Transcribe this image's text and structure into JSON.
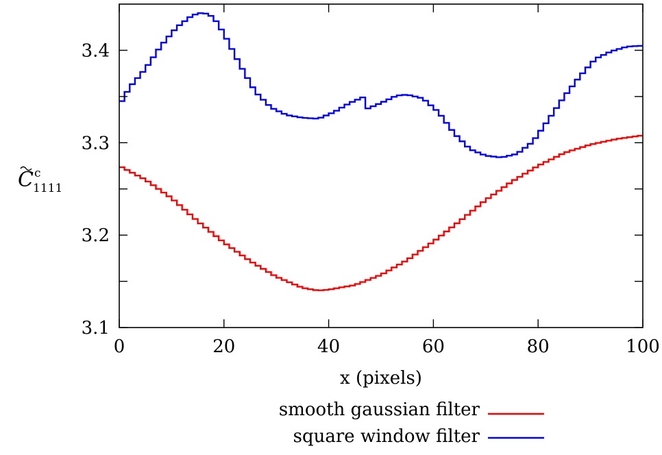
{
  "chart_data": {
    "type": "line",
    "xlabel": "x (pixels)",
    "ylabel": {
      "base": "C",
      "sup": "c",
      "sub": "1111"
    },
    "xlim": [
      0,
      100
    ],
    "ylim": [
      3.1,
      3.45
    ],
    "xticks": [
      0,
      20,
      40,
      60,
      80,
      100
    ],
    "yticks": [
      3.1,
      3.2,
      3.3,
      3.4
    ],
    "xtick_labels": [
      "0",
      "20",
      "40",
      "60",
      "80",
      "100"
    ],
    "ytick_labels": [
      "3.1",
      "3.2",
      "3.3",
      "3.4"
    ],
    "grid": false,
    "legend_position": "bottom-center",
    "step": true,
    "series": [
      {
        "name": "smooth gaussian filter",
        "color": "#ff0000",
        "x": [
          0,
          5,
          10,
          15,
          20,
          25,
          30,
          35,
          38,
          40,
          45,
          50,
          55,
          60,
          65,
          70,
          75,
          80,
          85,
          90,
          95,
          100
        ],
        "y": [
          3.275,
          3.26,
          3.24,
          3.215,
          3.192,
          3.172,
          3.155,
          3.143,
          3.14,
          3.141,
          3.146,
          3.157,
          3.173,
          3.193,
          3.215,
          3.238,
          3.258,
          3.275,
          3.289,
          3.298,
          3.304,
          3.308
        ]
      },
      {
        "name": "square window filter",
        "color": "#0000ff",
        "x": [
          0,
          2,
          5,
          8,
          11,
          14,
          16,
          18,
          20,
          23,
          26,
          29,
          32,
          35,
          38,
          41,
          44,
          46.5,
          47,
          50,
          53,
          55,
          58,
          61,
          64,
          67,
          70,
          73,
          76,
          79,
          82,
          85,
          88,
          91,
          94,
          97,
          100
        ],
        "y": [
          3.34,
          3.36,
          3.38,
          3.405,
          3.425,
          3.438,
          3.441,
          3.436,
          3.418,
          3.385,
          3.355,
          3.338,
          3.33,
          3.327,
          3.326,
          3.333,
          3.343,
          3.349,
          3.336,
          3.343,
          3.351,
          3.352,
          3.348,
          3.333,
          3.31,
          3.293,
          3.286,
          3.284,
          3.288,
          3.301,
          3.325,
          3.35,
          3.372,
          3.391,
          3.399,
          3.404,
          3.405
        ]
      }
    ]
  }
}
